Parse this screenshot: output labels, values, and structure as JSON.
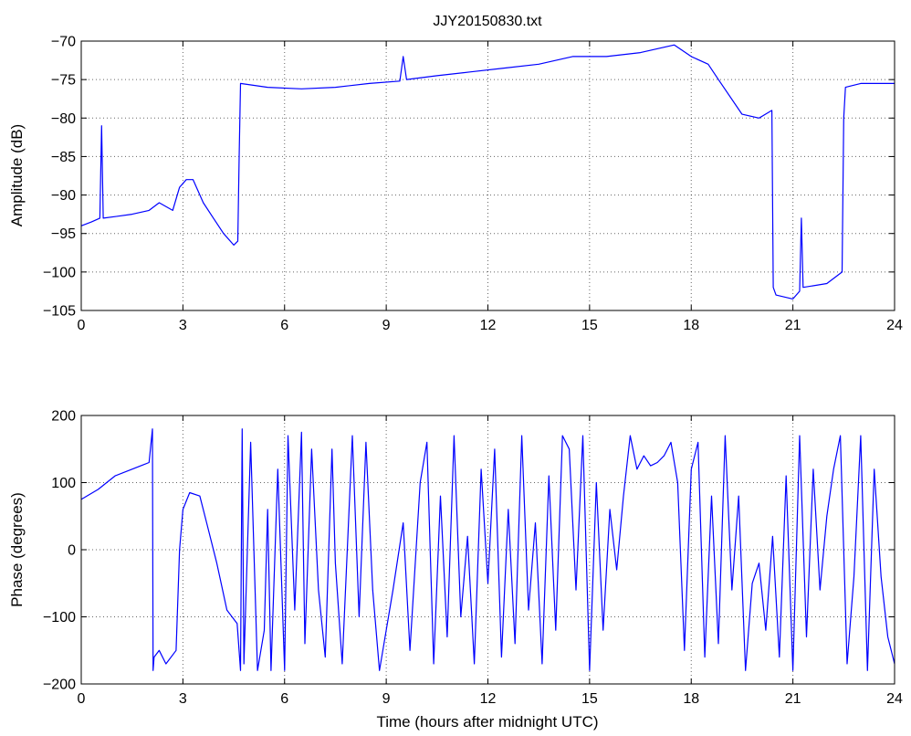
{
  "chart_data": [
    {
      "type": "line",
      "title": "JJY20150830.txt",
      "xlabel": "",
      "ylabel": "Amplitude (dB)",
      "xlim": [
        0,
        24
      ],
      "ylim": [
        -105,
        -70
      ],
      "xticks": [
        0,
        3,
        6,
        9,
        12,
        15,
        18,
        21,
        24
      ],
      "yticks": [
        -105,
        -100,
        -95,
        -90,
        -85,
        -80,
        -75,
        -70
      ],
      "grid": true,
      "color": "#0000ff",
      "series": [
        {
          "x": [
            0,
            0.3,
            0.55,
            0.6,
            0.65,
            1.0,
            1.5,
            2.0,
            2.3,
            2.7,
            2.9,
            3.1,
            3.3,
            3.6,
            3.9,
            4.2,
            4.5,
            4.62,
            4.66,
            4.7,
            5.5,
            6.5,
            7.5,
            8.5,
            9.4,
            9.5,
            9.6,
            10.5,
            11.5,
            12.5,
            13.5,
            14.5,
            15.5,
            16.5,
            17.5,
            18.0,
            18.5,
            18.8,
            19.5,
            20.0,
            20.38,
            20.42,
            20.5,
            21.0,
            21.2,
            21.25,
            21.3,
            22.0,
            22.45,
            22.5,
            22.55,
            23.0,
            24.0
          ],
          "y": [
            -94,
            -93.5,
            -93,
            -81,
            -93,
            -92.8,
            -92.5,
            -92,
            -91,
            -92,
            -89,
            -88,
            -88,
            -91,
            -93,
            -95,
            -96.5,
            -96,
            -85,
            -75.5,
            -76,
            -76.2,
            -76,
            -75.5,
            -75.2,
            -72,
            -75,
            -74.5,
            -74,
            -73.5,
            -73,
            -72,
            -72,
            -71.5,
            -70.5,
            -72,
            -73,
            -75,
            -79.5,
            -80,
            -79,
            -102,
            -103,
            -103.5,
            -102.5,
            -93,
            -102,
            -101.5,
            -100,
            -80,
            -76,
            -75.5,
            -75.5
          ]
        }
      ]
    },
    {
      "type": "line",
      "title": "",
      "xlabel": "Time (hours after midnight UTC)",
      "ylabel": "Phase (degrees)",
      "xlim": [
        0,
        24
      ],
      "ylim": [
        -200,
        200
      ],
      "xticks": [
        0,
        3,
        6,
        9,
        12,
        15,
        18,
        21,
        24
      ],
      "yticks": [
        -200,
        -100,
        0,
        100,
        200
      ],
      "grid": true,
      "color": "#0000ff",
      "series": [
        {
          "x": [
            0,
            0.5,
            1.0,
            1.5,
            2.0,
            2.1,
            2.12,
            2.15,
            2.3,
            2.5,
            2.8,
            2.9,
            3.0,
            3.2,
            3.5,
            3.7,
            4.0,
            4.3,
            4.6,
            4.7,
            4.75,
            4.8,
            5.0,
            5.2,
            5.4,
            5.5,
            5.6,
            5.8,
            6.0,
            6.1,
            6.3,
            6.5,
            6.6,
            6.8,
            7.0,
            7.2,
            7.4,
            7.5,
            7.7,
            8.0,
            8.2,
            8.4,
            8.6,
            8.8,
            9.0,
            9.2,
            9.5,
            9.7,
            10.0,
            10.2,
            10.4,
            10.6,
            10.8,
            11.0,
            11.2,
            11.4,
            11.6,
            11.8,
            12.0,
            12.2,
            12.4,
            12.6,
            12.8,
            13.0,
            13.2,
            13.4,
            13.6,
            13.8,
            14.0,
            14.2,
            14.4,
            14.6,
            14.8,
            15.0,
            15.2,
            15.4,
            15.6,
            15.8,
            16.0,
            16.2,
            16.4,
            16.6,
            16.8,
            17.0,
            17.2,
            17.4,
            17.6,
            17.8,
            18.0,
            18.2,
            18.4,
            18.6,
            18.8,
            19.0,
            19.2,
            19.4,
            19.6,
            19.8,
            20.0,
            20.2,
            20.4,
            20.6,
            20.8,
            21.0,
            21.2,
            21.4,
            21.6,
            21.8,
            22.0,
            22.2,
            22.4,
            22.6,
            22.8,
            23.0,
            23.2,
            23.4,
            23.6,
            23.8,
            24.0
          ],
          "y": [
            75,
            90,
            110,
            120,
            130,
            180,
            -180,
            -160,
            -150,
            -170,
            -150,
            0,
            60,
            85,
            80,
            40,
            -20,
            -90,
            -110,
            -180,
            180,
            -170,
            160,
            -180,
            -120,
            60,
            -180,
            120,
            -180,
            170,
            -90,
            175,
            -140,
            150,
            -60,
            -160,
            150,
            -20,
            -170,
            170,
            -100,
            160,
            -60,
            -180,
            -120,
            -60,
            40,
            -150,
            100,
            160,
            -170,
            80,
            -130,
            170,
            -100,
            20,
            -170,
            120,
            -50,
            150,
            -160,
            60,
            -140,
            170,
            -90,
            40,
            -170,
            110,
            -120,
            170,
            150,
            -60,
            170,
            -180,
            100,
            -120,
            60,
            -30,
            80,
            170,
            120,
            140,
            125,
            130,
            140,
            160,
            100,
            -150,
            120,
            160,
            -160,
            80,
            -140,
            170,
            -60,
            80,
            -180,
            -50,
            -20,
            -120,
            20,
            -160,
            110,
            -180,
            170,
            -130,
            120,
            -60,
            50,
            120,
            170,
            -170,
            -40,
            170,
            -180,
            120,
            -40,
            -130,
            -170
          ]
        }
      ]
    }
  ]
}
